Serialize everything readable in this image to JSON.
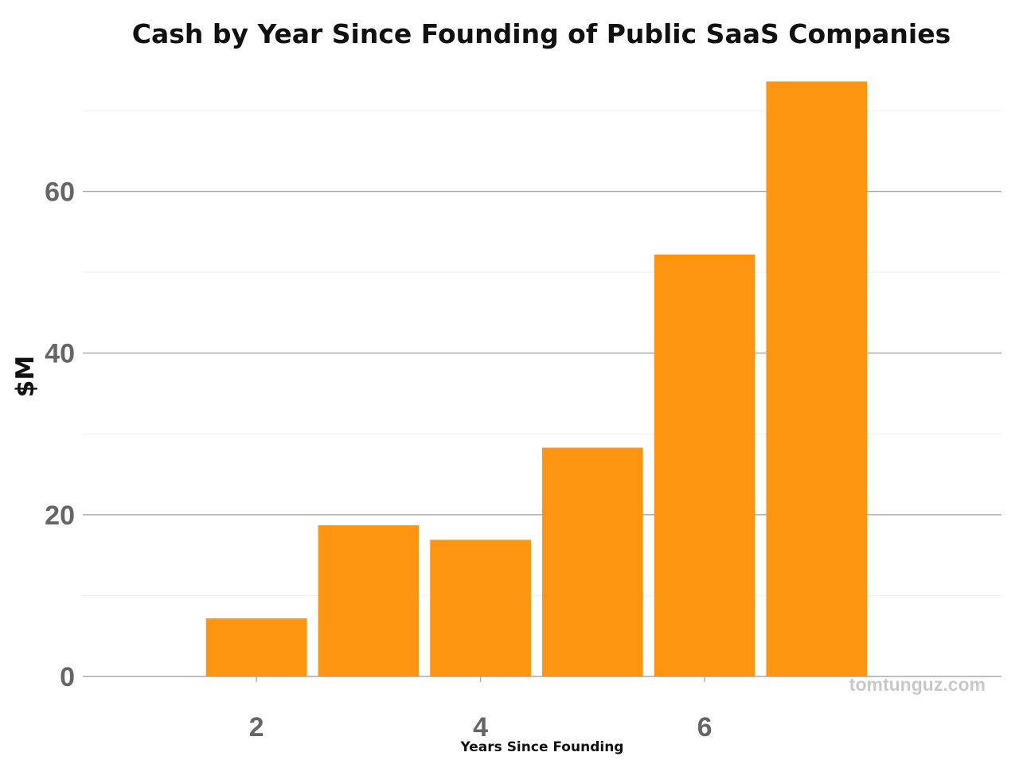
{
  "chart_data": {
    "type": "bar",
    "title": "Cash by Year Since Founding of Public SaaS Companies",
    "xlabel": "Years Since Founding",
    "ylabel": "$M",
    "x": [
      2,
      3,
      4,
      5,
      6,
      7
    ],
    "values": [
      7.2,
      18.7,
      16.9,
      28.3,
      52.2,
      73.6
    ],
    "xlim": [
      0.45,
      8.65
    ],
    "ylim": [
      0,
      76
    ],
    "x_ticks": [
      2,
      4,
      6
    ],
    "y_ticks": [
      0,
      20,
      40,
      60
    ],
    "y_minor_ticks": [
      10,
      30,
      50,
      70
    ],
    "grid": true,
    "legend": "none",
    "bar_color": "#fe9510",
    "grid_color": "#aaaaaa",
    "minor_grid_color": "#eeeeee",
    "tick_label_color": "#666666"
  },
  "watermark": "tomtunguz.com"
}
